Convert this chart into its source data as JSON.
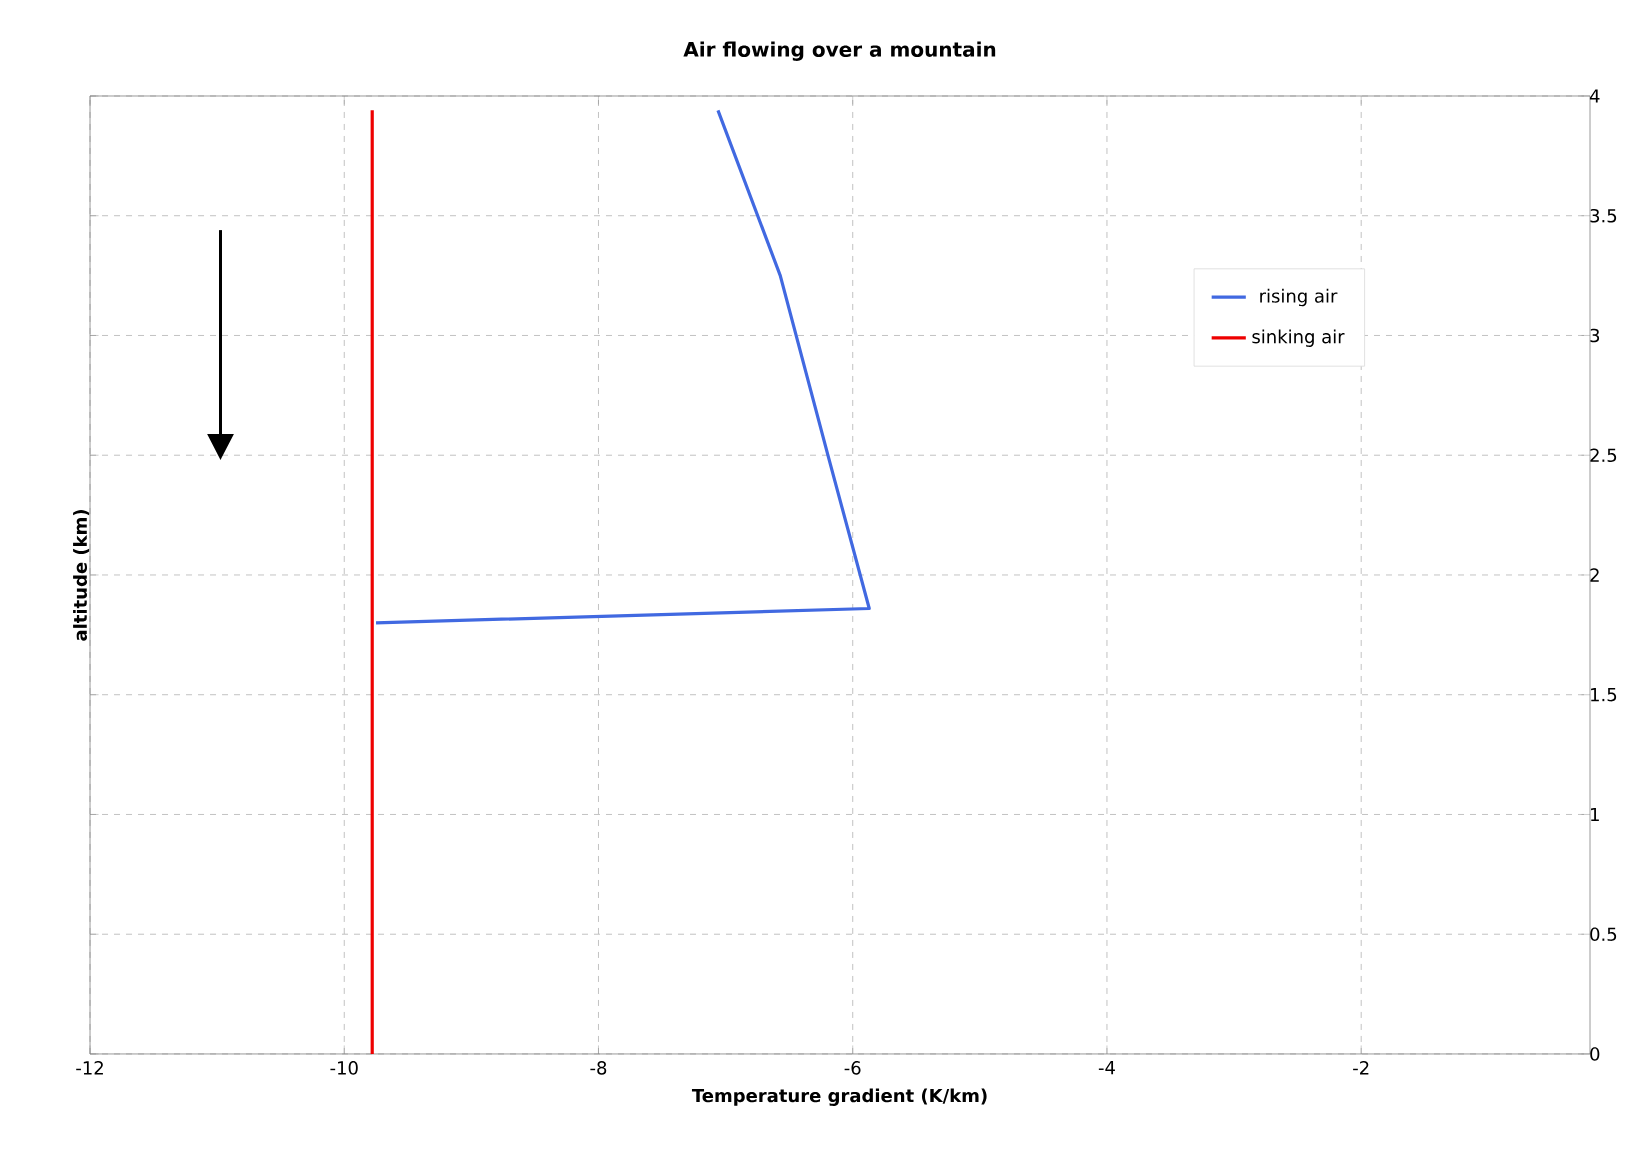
{
  "chart_data": {
    "type": "line",
    "title": "Air flowing over a mountain",
    "xlabel": "Temperature gradient (K/km)",
    "ylabel": "altitude (km)",
    "xlim": [
      -12,
      -0.2
    ],
    "ylim": [
      0,
      4
    ],
    "xticks": [
      -12,
      -10,
      -8,
      -6,
      -4,
      -2
    ],
    "yticks": [
      0,
      0.5,
      1,
      1.5,
      2,
      2.5,
      3,
      3.5,
      4
    ],
    "grid": true,
    "legend": "top right",
    "marker": "none",
    "line_style": "solid",
    "series": [
      {
        "name": "rising air",
        "color": "#4169e1",
        "x": [
          -9.75,
          -5.87,
          -6.19,
          -6.57,
          -7.06
        ],
        "values": [
          1.8,
          1.86,
          2.49,
          3.25,
          3.94
        ]
      },
      {
        "name": "sinking air",
        "color": "#ee0000",
        "x": [
          -9.78,
          -9.78
        ],
        "values": [
          0,
          3.94
        ]
      }
    ]
  }
}
